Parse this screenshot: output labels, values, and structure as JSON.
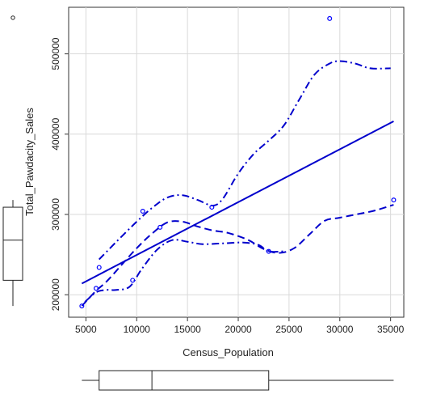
{
  "chart_data": {
    "type": "scatter",
    "title": "",
    "xlabel": "Census_Population",
    "ylabel": "Total_Pawdacity_Sales",
    "xlim": [
      3300,
      36300
    ],
    "ylim": [
      172000,
      558000
    ],
    "x_ticks": [
      5000,
      10000,
      15000,
      20000,
      25000,
      30000,
      35000
    ],
    "y_ticks": [
      200000,
      300000,
      400000,
      500000
    ],
    "x_tick_labels": [
      "5000",
      "10000",
      "15000",
      "20000",
      "25000",
      "30000",
      "35000"
    ],
    "y_tick_labels": [
      "200000",
      "300000",
      "400000",
      "500000"
    ],
    "grid": true,
    "points": [
      {
        "x": 4600,
        "y": 186000
      },
      {
        "x": 6000,
        "y": 208000
      },
      {
        "x": 6300,
        "y": 234000
      },
      {
        "x": 9600,
        "y": 218000
      },
      {
        "x": 10600,
        "y": 304000
      },
      {
        "x": 12300,
        "y": 284000
      },
      {
        "x": 17400,
        "y": 309000
      },
      {
        "x": 23000,
        "y": 254000
      },
      {
        "x": 29000,
        "y": 544000
      },
      {
        "x": 35300,
        "y": 318000
      }
    ],
    "regression_line": {
      "x": [
        4600,
        35300
      ],
      "y": [
        214000,
        416000
      ]
    },
    "smooth_curve": [
      {
        "x": 4600,
        "y": 186000
      },
      {
        "x": 6000,
        "y": 205000
      },
      {
        "x": 7000,
        "y": 216000
      },
      {
        "x": 8500,
        "y": 237000
      },
      {
        "x": 10000,
        "y": 258000
      },
      {
        "x": 11500,
        "y": 276000
      },
      {
        "x": 13000,
        "y": 290000
      },
      {
        "x": 14500,
        "y": 291000
      },
      {
        "x": 16000,
        "y": 285000
      },
      {
        "x": 17500,
        "y": 280000
      },
      {
        "x": 19000,
        "y": 277000
      },
      {
        "x": 21000,
        "y": 268000
      },
      {
        "x": 22500,
        "y": 257000
      },
      {
        "x": 24000,
        "y": 252000
      },
      {
        "x": 25500,
        "y": 258000
      },
      {
        "x": 27000,
        "y": 275000
      },
      {
        "x": 28500,
        "y": 292000
      },
      {
        "x": 30000,
        "y": 296000
      },
      {
        "x": 32000,
        "y": 301000
      },
      {
        "x": 33500,
        "y": 305000
      },
      {
        "x": 35300,
        "y": 312000
      }
    ],
    "upper_band": [
      {
        "x": 6300,
        "y": 244000
      },
      {
        "x": 8000,
        "y": 266000
      },
      {
        "x": 10000,
        "y": 291000
      },
      {
        "x": 11500,
        "y": 308000
      },
      {
        "x": 13000,
        "y": 321000
      },
      {
        "x": 14500,
        "y": 324000
      },
      {
        "x": 16000,
        "y": 318000
      },
      {
        "x": 17500,
        "y": 311000
      },
      {
        "x": 18500,
        "y": 320000
      },
      {
        "x": 20000,
        "y": 351000
      },
      {
        "x": 21500,
        "y": 375000
      },
      {
        "x": 23000,
        "y": 392000
      },
      {
        "x": 24500,
        "y": 411000
      },
      {
        "x": 26000,
        "y": 443000
      },
      {
        "x": 27500,
        "y": 474000
      },
      {
        "x": 29000,
        "y": 488000
      },
      {
        "x": 30000,
        "y": 491000
      },
      {
        "x": 31500,
        "y": 488000
      },
      {
        "x": 33000,
        "y": 482000
      },
      {
        "x": 35000,
        "y": 482000
      }
    ],
    "lower_band": [
      {
        "x": 4900,
        "y": 191000
      },
      {
        "x": 6000,
        "y": 203000
      },
      {
        "x": 7000,
        "y": 206000
      },
      {
        "x": 8000,
        "y": 206000
      },
      {
        "x": 9300,
        "y": 210000
      },
      {
        "x": 10500,
        "y": 232000
      },
      {
        "x": 12000,
        "y": 256000
      },
      {
        "x": 13500,
        "y": 268000
      },
      {
        "x": 15000,
        "y": 266000
      },
      {
        "x": 16500,
        "y": 263000
      },
      {
        "x": 18500,
        "y": 264000
      },
      {
        "x": 20500,
        "y": 265000
      },
      {
        "x": 22000,
        "y": 262000
      },
      {
        "x": 23000,
        "y": 254000
      },
      {
        "x": 24500,
        "y": 254000
      }
    ],
    "x_boxplot": {
      "min": 4600,
      "q1": 6300,
      "median": 11500,
      "q3": 23000,
      "max": 35300
    },
    "y_boxplot": {
      "min": 186000,
      "q1": 218000,
      "median": 268000,
      "q3": 309000,
      "max": 318000,
      "outliers": [
        544000
      ]
    },
    "colors": {
      "points": "#0000ff",
      "lines": "#0000cc",
      "grid": "#d9d9d9",
      "axis": "#333333",
      "boxplot": "#222222"
    }
  }
}
